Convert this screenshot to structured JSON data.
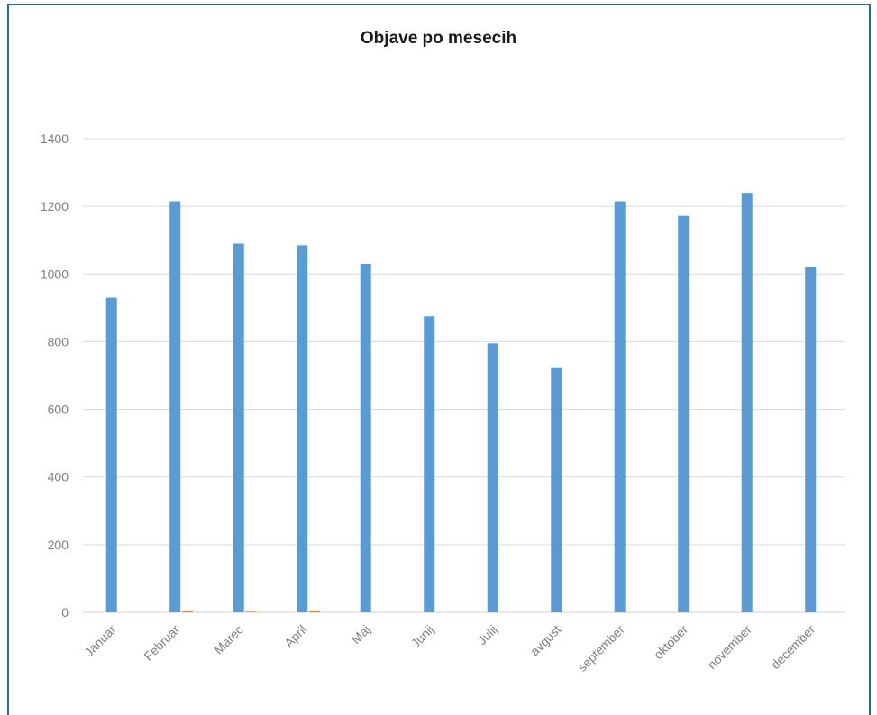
{
  "chart_data": {
    "type": "bar",
    "title": "Objave po mesecih",
    "categories": [
      "Januar",
      "Februar",
      "Marec",
      "April",
      "Maj",
      "Junij",
      "Julij",
      "avgust",
      "september",
      "oktober",
      "november",
      "december"
    ],
    "series": [
      {
        "values": [
          930,
          1215,
          1090,
          1085,
          1030,
          875,
          795,
          722,
          1215,
          1172,
          1240,
          1022
        ],
        "color": "#5b9bd5"
      },
      {
        "values": [
          0,
          5,
          2,
          5,
          0,
          0,
          0,
          0,
          0,
          0,
          0,
          0
        ],
        "color": "#ed7d31"
      }
    ],
    "ylim": [
      0,
      1400
    ],
    "yticks": [
      0,
      200,
      400,
      600,
      800,
      1000,
      1200,
      1400
    ],
    "grid": true,
    "gridColor": "#d9d9d9"
  }
}
